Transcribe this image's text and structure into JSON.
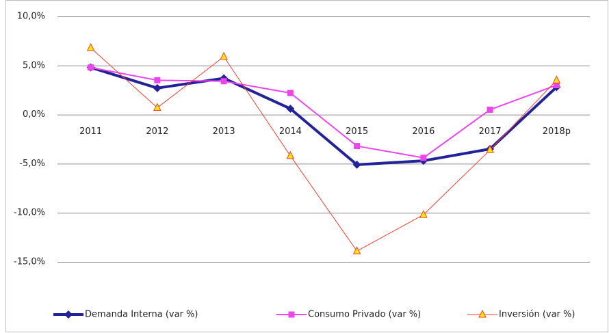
{
  "chart_data": {
    "type": "line",
    "categories": [
      "2011",
      "2012",
      "2013",
      "2014",
      "2015",
      "2016",
      "2017",
      "2018p"
    ],
    "series": [
      {
        "name": "Demanda Interna (var %)",
        "color": "#22229a",
        "marker": "diamond",
        "values": [
          4.8,
          2.7,
          3.7,
          0.6,
          -5.1,
          -4.7,
          -3.5,
          2.8
        ]
      },
      {
        "name": "Consumo Privado (var %)",
        "color": "#ee44ee",
        "marker": "square",
        "values": [
          4.8,
          3.5,
          3.4,
          2.2,
          -3.2,
          -4.4,
          0.5,
          3.0
        ]
      },
      {
        "name": "Inversión (var %)",
        "color": "#ff3b2f",
        "marker": "triangle",
        "values": [
          6.8,
          0.7,
          5.9,
          -4.2,
          -13.9,
          -10.2,
          -3.6,
          3.5
        ]
      }
    ],
    "ylim": [
      -15,
      10
    ],
    "yticks": [
      {
        "value": 10,
        "label": "10,0%"
      },
      {
        "value": 5,
        "label": "5,0%"
      },
      {
        "value": 0,
        "label": "0,0%"
      },
      {
        "value": -5,
        "label": "-5,0%"
      },
      {
        "value": -10,
        "label": "-10,0%"
      },
      {
        "value": -15,
        "label": "-15,0%"
      }
    ],
    "grid": true,
    "legend": "bottom"
  }
}
